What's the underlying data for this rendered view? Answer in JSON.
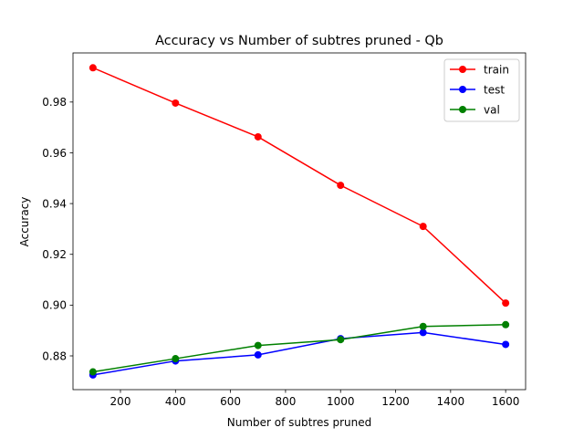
{
  "chart_data": {
    "type": "line",
    "title": "Accuracy vs Number of subtres pruned - Qb",
    "xlabel": "Number of subtres pruned",
    "ylabel": "Accuracy",
    "x": [
      100,
      400,
      700,
      1000,
      1300,
      1600
    ],
    "xlim": [
      27.5,
      1672.5
    ],
    "ylim": [
      0.8667,
      0.99935
    ],
    "xticks": [
      200,
      400,
      600,
      800,
      1000,
      1200,
      1400,
      1600
    ],
    "yticks": [
      0.88,
      0.9,
      0.92,
      0.94,
      0.96,
      0.98
    ],
    "ytick_decimals": 2,
    "grid": false,
    "legend_position": "top-right",
    "series": [
      {
        "name": "train",
        "color": "#ff0000",
        "values": [
          0.9935,
          0.9796,
          0.9663,
          0.9472,
          0.931,
          0.9008
        ]
      },
      {
        "name": "test",
        "color": "#0000ff",
        "values": [
          0.8725,
          0.878,
          0.8804,
          0.8868,
          0.8892,
          0.8845
        ]
      },
      {
        "name": "val",
        "color": "#008000",
        "values": [
          0.8737,
          0.8789,
          0.8841,
          0.8864,
          0.8916,
          0.8923
        ]
      }
    ]
  }
}
